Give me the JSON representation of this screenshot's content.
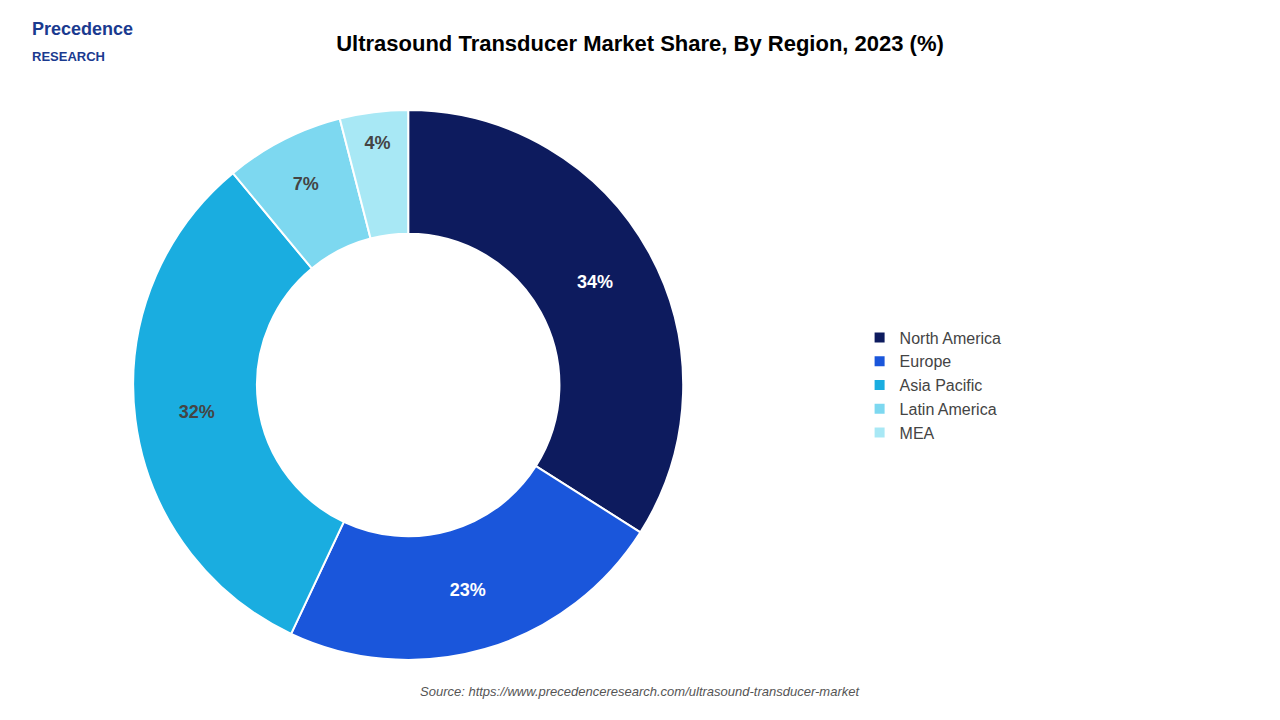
{
  "chart_data": {
    "type": "pie",
    "title": "Ultrasound Transducer Market Share, By Region, 2023 (%)",
    "categories": [
      "North America",
      "Europe",
      "Asia Pacific",
      "Latin America",
      "MEA"
    ],
    "values": [
      34,
      23,
      32,
      7,
      4
    ],
    "value_labels": [
      "34%",
      "23%",
      "32%",
      "7%",
      "4%"
    ],
    "colors": [
      "#0d1b5e",
      "#1a56db",
      "#1aade0",
      "#7dd8f0",
      "#a8e8f5"
    ],
    "data_labels": true,
    "legend": "right",
    "annotations": [
      {
        "text": "Precedence",
        "color": "#1a3a8f"
      },
      {
        "text": "RESEARCH",
        "color": "#1a3a8f"
      },
      {
        "text": "Source: https://www.precedenceresearch.com/ultrasound-transducer-market",
        "color": "#555555"
      }
    ]
  }
}
